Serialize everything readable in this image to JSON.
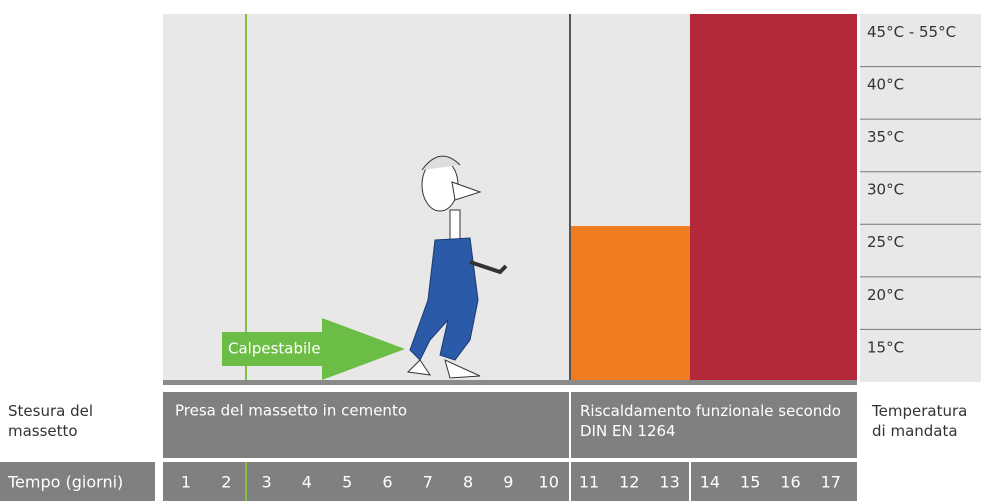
{
  "temperatures": [
    "45°C - 55°C",
    "40°C",
    "35°C",
    "30°C",
    "25°C",
    "20°C",
    "15°C"
  ],
  "arrow_label": "Calpestabile",
  "rows": {
    "laying": "Stesura del massetto",
    "time": "Tempo (giorni)",
    "flow_temperature": "Temperatura di mandata"
  },
  "phases": [
    "Presa del massetto in cemento",
    "Riscaldamento funzionale secondo DIN EN 1264"
  ],
  "days": [
    1,
    2,
    3,
    4,
    5,
    6,
    7,
    8,
    9,
    10,
    11,
    12,
    13,
    14,
    15,
    16,
    17
  ]
}
